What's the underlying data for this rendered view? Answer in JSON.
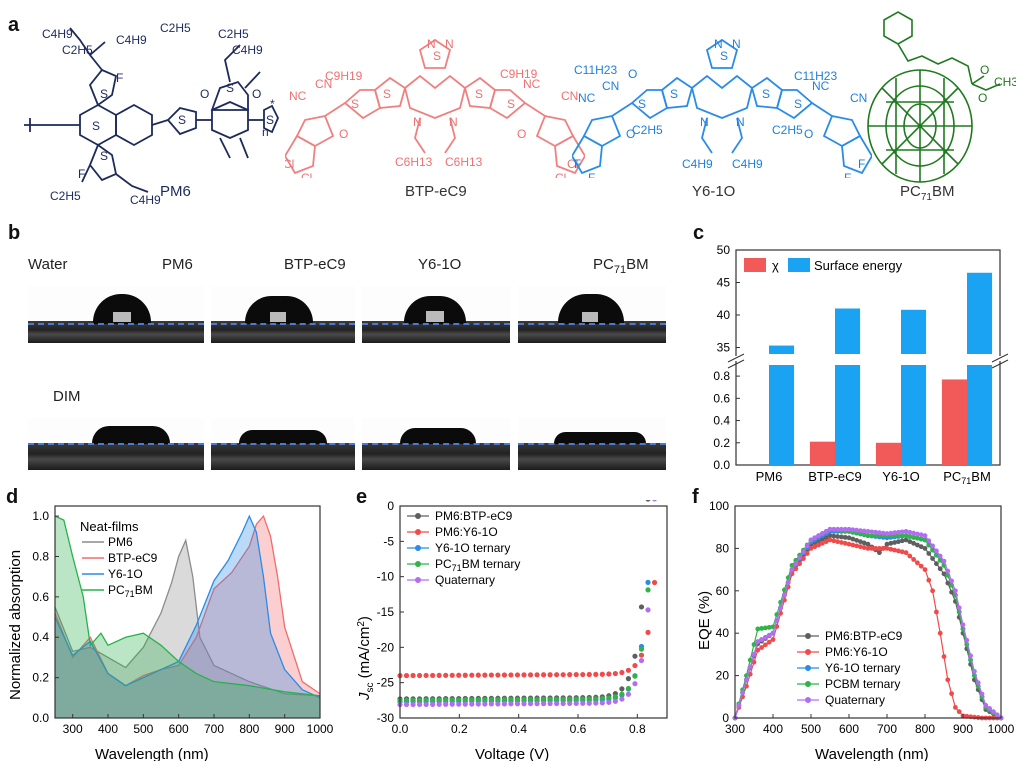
{
  "panels": {
    "a": "a",
    "b": "b",
    "c": "c",
    "d": "d",
    "e": "e",
    "f": "f"
  },
  "molecules": {
    "pm6": {
      "name": "PM6",
      "labels": [
        "C4H9",
        "C2H5",
        "C4H9",
        "C2H5",
        "C2H5",
        "C4H9",
        "F",
        "F",
        "O",
        "O",
        "S",
        "S",
        "S",
        "S",
        "S",
        "S",
        "n",
        "*",
        "C2H5",
        "C4H9"
      ]
    },
    "btp": {
      "name": "BTP-eC9",
      "labels": [
        "N",
        "S",
        "N",
        "C9H19",
        "C9H19",
        "NC",
        "CN",
        "NC",
        "CN",
        "O",
        "O",
        "Cl",
        "Cl",
        "Cl",
        "Cl",
        "S",
        "S",
        "S",
        "S",
        "N",
        "N",
        "C6H13",
        "C6H13"
      ]
    },
    "y6": {
      "name": "Y6-1O",
      "labels": [
        "N",
        "S",
        "N",
        "C11H23",
        "C11H23",
        "O",
        "NC",
        "CN",
        "NC",
        "CN",
        "O",
        "O",
        "F",
        "F",
        "F",
        "F",
        "S",
        "S",
        "S",
        "S",
        "N",
        "N",
        "C2H5",
        "C2H5",
        "C4H9",
        "C4H9"
      ]
    },
    "pcbm": {
      "name": "PC71BM",
      "labels": [
        "O",
        "O",
        "CH3"
      ]
    }
  },
  "contact_angle": {
    "row_labels": [
      "Water",
      "DIM"
    ],
    "columns": [
      "PM6",
      "BTP-eC9",
      "Y6-1O",
      "PC71BM"
    ]
  },
  "chart_data": [
    {
      "id": "c",
      "type": "bar",
      "categories": [
        "PM6",
        "BTP-eC9",
        "Y6-1O",
        "PC71BM"
      ],
      "series": [
        {
          "name": "χ",
          "values": [
            null,
            0.21,
            0.2,
            0.77
          ],
          "color": "#f25a5a"
        },
        {
          "name": "Surface energy",
          "values": [
            35.3,
            41.0,
            40.8,
            46.5
          ],
          "color": "#1aa3f2"
        }
      ],
      "axis_break": {
        "lower": [
          0,
          0.9
        ],
        "upper": [
          34,
          50
        ]
      },
      "yticks_lower": [
        "0.0",
        "0.2",
        "0.4",
        "0.6",
        "0.8"
      ],
      "yticks_upper": [
        "35",
        "40",
        "45",
        "50"
      ],
      "legend": "top-left"
    },
    {
      "id": "d",
      "type": "area",
      "xlabel": "Wavelength (nm)",
      "ylabel": "Normalized absorption",
      "xlim": [
        250,
        1000
      ],
      "ylim": [
        0,
        1.05
      ],
      "xticks": [
        "300",
        "400",
        "500",
        "600",
        "700",
        "800",
        "900",
        "1000"
      ],
      "yticks": [
        "0.0",
        "0.2",
        "0.4",
        "0.6",
        "0.8",
        "1.0"
      ],
      "legend_title": "Neat-films",
      "series": [
        {
          "name": "PM6",
          "color": "#8c8c8c",
          "x": [
            250,
            300,
            350,
            400,
            450,
            500,
            550,
            580,
            600,
            620,
            640,
            660,
            700,
            750,
            800,
            900,
            1000
          ],
          "y": [
            0.55,
            0.33,
            0.35,
            0.3,
            0.25,
            0.35,
            0.52,
            0.67,
            0.8,
            0.88,
            0.7,
            0.4,
            0.26,
            0.22,
            0.18,
            0.12,
            0.11
          ]
        },
        {
          "name": "BTP-eC9",
          "color": "#f26b6b",
          "x": [
            250,
            300,
            350,
            400,
            450,
            500,
            550,
            600,
            650,
            700,
            750,
            800,
            820,
            840,
            860,
            880,
            900,
            950,
            1000
          ],
          "y": [
            0.52,
            0.3,
            0.4,
            0.22,
            0.16,
            0.21,
            0.24,
            0.26,
            0.4,
            0.64,
            0.72,
            0.85,
            0.96,
            1.0,
            0.9,
            0.7,
            0.45,
            0.18,
            0.12
          ]
        },
        {
          "name": "Y6-1O",
          "color": "#2a8ce8",
          "x": [
            250,
            300,
            350,
            400,
            450,
            500,
            550,
            600,
            650,
            700,
            740,
            780,
            800,
            820,
            840,
            860,
            900,
            950,
            1000
          ],
          "y": [
            0.5,
            0.31,
            0.38,
            0.22,
            0.16,
            0.2,
            0.24,
            0.28,
            0.46,
            0.68,
            0.78,
            0.92,
            1.0,
            0.92,
            0.7,
            0.42,
            0.24,
            0.14,
            0.1
          ]
        },
        {
          "name": "PC71BM",
          "color": "#28b24b",
          "x": [
            250,
            275,
            300,
            330,
            350,
            380,
            400,
            450,
            500,
            550,
            600,
            650,
            700,
            800,
            900,
            1000
          ],
          "y": [
            1.0,
            0.98,
            0.8,
            0.6,
            0.36,
            0.42,
            0.36,
            0.4,
            0.42,
            0.36,
            0.28,
            0.22,
            0.18,
            0.16,
            0.13,
            0.11
          ]
        }
      ],
      "legend": "top-left"
    },
    {
      "id": "e",
      "type": "scatter",
      "xlabel": "Voltage (V)",
      "ylabel": "Jsc (mA/cm2)",
      "ylabel_main": "J",
      "ylabel_sub": "sc",
      "ylabel_unit": " (mA/cm",
      "ylabel_sup": "2",
      "ylabel_close": ")",
      "xlim": [
        0.0,
        0.9
      ],
      "ylim": [
        -30,
        0
      ],
      "xticks": [
        "0.0",
        "0.2",
        "0.4",
        "0.6",
        "0.8"
      ],
      "yticks": [
        "0",
        "-5",
        "-10",
        "-15",
        "-20",
        "-25",
        "-30"
      ],
      "series": [
        {
          "name": "PM6:BTP-eC9",
          "color": "#5f5f5f",
          "jsc": -27.3,
          "voc": 0.835
        },
        {
          "name": "PM6:Y6-1O",
          "color": "#f04a4a",
          "jsc": -24.0,
          "voc": 0.875
        },
        {
          "name": "Y6-1O ternary",
          "color": "#2a8ce8",
          "jsc": -27.7,
          "voc": 0.85
        },
        {
          "name": "PC71BM ternary",
          "color": "#2fb34a",
          "jsc": -27.5,
          "voc": 0.852
        },
        {
          "name": "Quaternary",
          "color": "#b36ef0",
          "jsc": -28.1,
          "voc": 0.857
        }
      ],
      "legend": "top-left"
    },
    {
      "id": "f",
      "type": "scatter",
      "xlabel": "Wavelength (nm)",
      "ylabel": "EQE (%)",
      "xlim": [
        300,
        1000
      ],
      "ylim": [
        0,
        100
      ],
      "xticks": [
        "300",
        "400",
        "500",
        "600",
        "700",
        "800",
        "900",
        "1000"
      ],
      "yticks": [
        "0",
        "20",
        "40",
        "60",
        "80",
        "100"
      ],
      "series": [
        {
          "name": "PM6:BTP-eC9",
          "color": "#5f5f5f",
          "x": [
            300,
            330,
            360,
            400,
            450,
            500,
            550,
            600,
            650,
            680,
            700,
            750,
            800,
            850,
            880,
            900,
            930,
            960,
            1000
          ],
          "y": [
            0,
            18,
            35,
            40,
            70,
            82,
            86,
            85,
            82,
            78,
            82,
            84,
            80,
            68,
            55,
            40,
            18,
            4,
            0
          ]
        },
        {
          "name": "PM6:Y6-1O",
          "color": "#f04a4a",
          "x": [
            300,
            330,
            360,
            400,
            450,
            500,
            550,
            600,
            650,
            700,
            750,
            800,
            820,
            840,
            860,
            880,
            900,
            950,
            1000
          ],
          "y": [
            0,
            15,
            32,
            37,
            68,
            80,
            84,
            82,
            80,
            80,
            78,
            70,
            60,
            40,
            18,
            5,
            1,
            0,
            0
          ]
        },
        {
          "name": "Y6-1O  ternary",
          "color": "#2a8ce8",
          "x": [
            300,
            330,
            360,
            400,
            450,
            500,
            550,
            600,
            650,
            700,
            750,
            800,
            850,
            880,
            900,
            930,
            960,
            1000
          ],
          "y": [
            0,
            18,
            36,
            40,
            70,
            83,
            88,
            88,
            86,
            85,
            86,
            84,
            72,
            58,
            42,
            20,
            5,
            0
          ]
        },
        {
          "name": "PCBM  ternary",
          "color": "#2fb34a",
          "x": [
            300,
            330,
            360,
            400,
            450,
            500,
            550,
            600,
            650,
            700,
            750,
            800,
            850,
            880,
            900,
            930,
            960,
            1000
          ],
          "y": [
            0,
            20,
            42,
            43,
            72,
            84,
            89,
            88,
            86,
            86,
            86,
            84,
            72,
            58,
            42,
            20,
            5,
            0
          ]
        },
        {
          "name": "Quaternary",
          "color": "#b36ef0",
          "x": [
            300,
            330,
            360,
            400,
            450,
            500,
            550,
            600,
            650,
            700,
            750,
            800,
            850,
            880,
            900,
            930,
            960,
            1000
          ],
          "y": [
            0,
            18,
            36,
            40,
            70,
            84,
            89,
            89,
            88,
            87,
            88,
            86,
            74,
            60,
            44,
            22,
            6,
            0
          ]
        }
      ],
      "legend": "bottom-right"
    }
  ]
}
